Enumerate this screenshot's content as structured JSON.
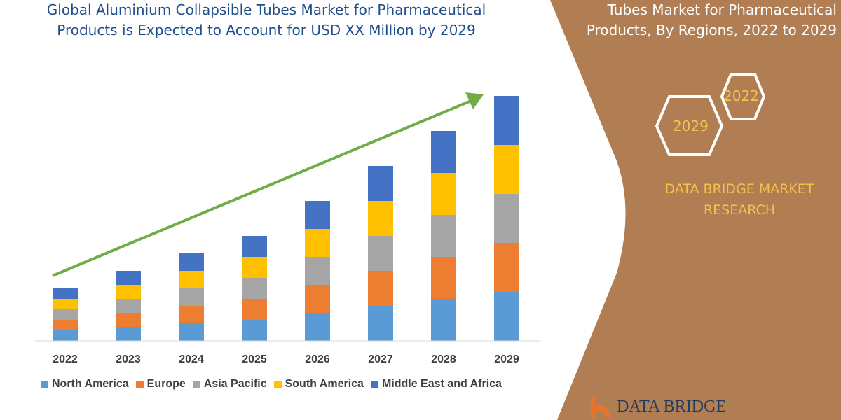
{
  "chart_data": {
    "type": "bar",
    "stacked": true,
    "title": "Global Aluminium Collapsible Tubes Market for Pharmaceutical Products is Expected to Account for USD XX Million by 2029",
    "categories": [
      "2022",
      "2023",
      "2024",
      "2025",
      "2026",
      "2027",
      "2028",
      "2029"
    ],
    "series": [
      {
        "name": "North America",
        "color": "#5B9BD5",
        "values": [
          15,
          20,
          25,
          30,
          40,
          50,
          60,
          70
        ]
      },
      {
        "name": "Europe",
        "color": "#ED7D31",
        "values": [
          15,
          20,
          25,
          30,
          40,
          50,
          60,
          70
        ]
      },
      {
        "name": "Asia Pacific",
        "color": "#A5A5A5",
        "values": [
          15,
          20,
          25,
          30,
          40,
          50,
          60,
          70
        ]
      },
      {
        "name": "South America",
        "color": "#FFC000",
        "values": [
          15,
          20,
          25,
          30,
          40,
          50,
          60,
          70
        ]
      },
      {
        "name": "Middle East and Africa",
        "color": "#4472C4",
        "values": [
          15,
          20,
          25,
          30,
          40,
          50,
          60,
          70
        ]
      }
    ],
    "value_axis_shown": false,
    "grid": false,
    "legend": "bottom",
    "trend_arrow_color": "#70AD47"
  },
  "side_panel": {
    "title_line1": "Tubes Market for Pharmaceutical",
    "title_line2": "Products, By Regions, 2022 to 2029",
    "hex_2022": "2022",
    "hex_2029": "2029",
    "brand_line1": "DATA BRIDGE MARKET",
    "brand_line2": "RESEARCH",
    "logo_text": "DATA BRIDGE",
    "panel_color": "#B07E52",
    "accent_color": "#F6C24A"
  },
  "title_line1": "Global Aluminium Collapsible Tubes Market for Pharmaceutical",
  "title_line2": "Products is Expected to Account for USD XX Million by 2029"
}
